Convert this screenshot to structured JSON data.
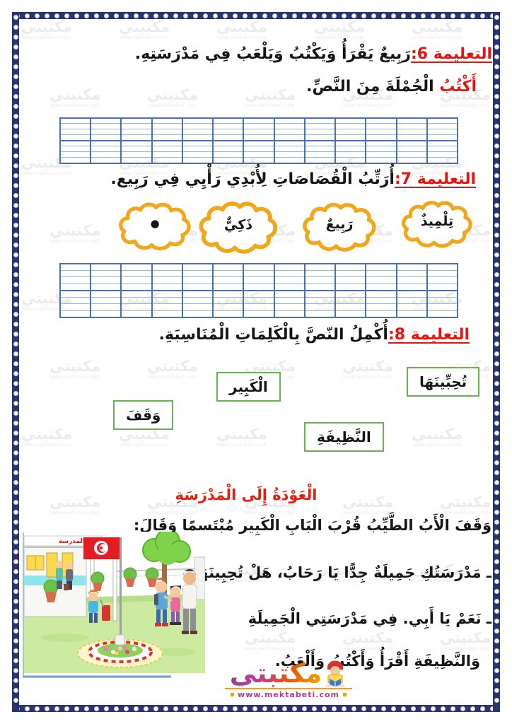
{
  "page": {
    "watermark": {
      "text": "مكتبتي",
      "url": "www.mektabeti.com"
    }
  },
  "instructions": {
    "i6": {
      "label": "التعليمة 6:",
      "text": "رَبِيعٌ يَقْرَأُ وَيَكْتُبُ وَيَلْعَبُ فِي مَدْرَسَتِهِ."
    },
    "i6_task": {
      "verb": "أَكْتُبُ",
      "text": "الْجُمْلَةَ مِنَ النَّصِّ."
    },
    "i7": {
      "label": "التعليمة 7:",
      "text": "أُرَتِّبُ الْقُصَاصَاتِ لِأُبْدِي رَأْيِي فِي رَبِيع."
    },
    "i8": {
      "label": "التعليمة 8:",
      "text": "أُكْمِلُ النّصَّ بِالْكَلِمَاتِ الْمُنَاسِبَةِ."
    }
  },
  "clouds": [
    {
      "text": "تِلْمِيذٌ"
    },
    {
      "text": "رَبِيعٌ"
    },
    {
      "text": "ذَكِيٌّ"
    },
    {
      "text": "●"
    }
  ],
  "word_boxes": [
    {
      "text": "تُحِبِّينَهَا"
    },
    {
      "text": "الْكَبِير"
    },
    {
      "text": "وَقَفَ"
    },
    {
      "text": "النَّظِيفَةِ"
    }
  ],
  "story": {
    "title": "الْعَوْدَةُ إِلَى الْمَدْرَسَةِ",
    "line1": "وَقَفَ الْأَبُ الطَّيِّبُ قُرْبَ الْبَابِ الْكَبِير مُبْتَسِمًا وَقَالَ:",
    "line2": "ـ مَدْرَسَتُكِ جَمِيلَةٌ جِدًّا يَا رَحَابُ، هَلْ تُحِبِينَهَا؟",
    "line3": "ـ نَعَمْ يَا أَبِي. فِي مَدْرَسَتِي الْجَمِيلَةِ",
    "line4": "وَالنَّظِيفَةِ أَقْرَأُ وَأَكْتُبُ وَأَلْعَبُ."
  },
  "illustration": {
    "school_sign": "المدرسة"
  },
  "logo": {
    "name": "مكتبتي",
    "url": "www.mektabeti.com"
  },
  "colors": {
    "accent_red": "#e8130c",
    "frame_navy": "#2b3374",
    "grid_blue": "#4a6fb3",
    "grid_green": "#8bc9a8",
    "cloud_yellow": "#f2a71b",
    "box_green": "#64b54e"
  }
}
